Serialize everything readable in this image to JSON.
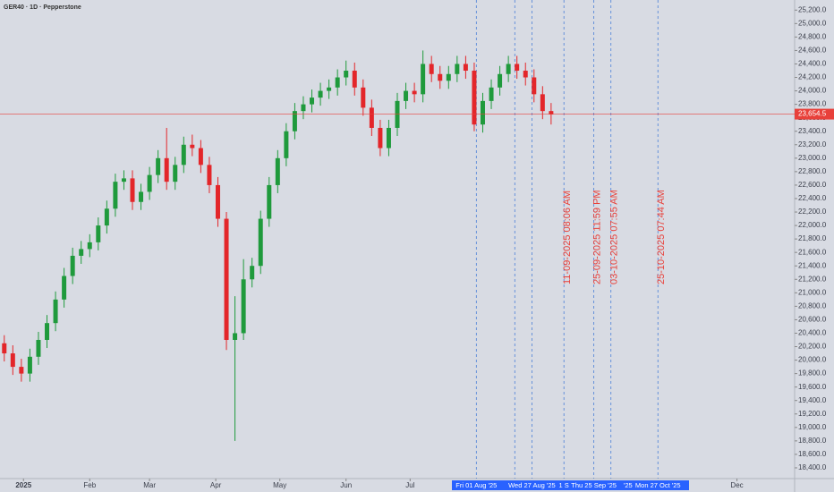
{
  "chart_data": {
    "type": "candlestick",
    "title": "GER40 · 1D · Pepperstone",
    "colors": {
      "up": "#1f9a3c",
      "down": "#e3262a",
      "price_line": "#e8403a",
      "marker_line": "#4a7fd8"
    },
    "x": [
      -8,
      -4,
      0,
      4,
      8,
      12,
      16,
      20,
      24,
      28,
      32,
      36,
      40,
      44,
      48,
      52,
      56,
      60,
      64,
      68,
      72,
      76,
      80,
      84,
      88,
      92,
      96,
      100,
      104,
      108,
      112,
      116,
      120,
      124,
      128,
      132,
      136,
      140,
      144,
      148,
      152,
      156,
      160,
      164,
      168,
      172,
      176,
      180,
      184,
      188,
      192,
      196,
      200,
      204,
      208,
      212,
      216,
      220,
      224,
      228,
      232,
      236,
      240,
      244,
      248
    ],
    "open": [
      20250,
      20100,
      19900,
      19800,
      20050,
      20300,
      20550,
      20900,
      21250,
      21550,
      21650,
      21750,
      22000,
      22250,
      22650,
      22700,
      22350,
      22500,
      22750,
      23000,
      22650,
      22900,
      23200,
      23150,
      22900,
      22600,
      22100,
      20300,
      20400,
      21200,
      21400,
      22100,
      22600,
      23000,
      23400,
      23700,
      23800,
      23900,
      24000,
      24050,
      24200,
      24300,
      24050,
      23750,
      23450,
      23150,
      23450,
      23850,
      24000,
      23950,
      24400,
      24250,
      24150,
      24250,
      24400,
      24300,
      23500,
      23850,
      24050,
      24250,
      24400,
      24300,
      24200,
      23950,
      23700
    ],
    "high": [
      20370,
      20220,
      20020,
      20170,
      20420,
      20670,
      21020,
      21370,
      21670,
      21770,
      21870,
      22120,
      22370,
      22770,
      22820,
      22820,
      22620,
      22870,
      23120,
      23450,
      23020,
      23320,
      23350,
      23270,
      23020,
      22720,
      22200,
      20950,
      21500,
      21520,
      22220,
      22720,
      23120,
      23520,
      23820,
      23920,
      24020,
      24120,
      24170,
      24320,
      24450,
      24420,
      24170,
      23870,
      23570,
      23570,
      23970,
      24120,
      24120,
      24600,
      24520,
      24370,
      24370,
      24520,
      24520,
      24420,
      23970,
      24170,
      24370,
      24520,
      24520,
      24420,
      24320,
      24070,
      23820
    ],
    "low": [
      19980,
      19780,
      19680,
      19680,
      19930,
      20180,
      20430,
      20780,
      21130,
      21430,
      21530,
      21630,
      21880,
      22130,
      22530,
      22230,
      22230,
      22380,
      22630,
      22530,
      22530,
      22780,
      23030,
      22780,
      22480,
      21980,
      20150,
      18800,
      20300,
      21080,
      21280,
      21980,
      22480,
      22880,
      23280,
      23580,
      23680,
      23780,
      23880,
      23930,
      24080,
      23930,
      23630,
      23330,
      23030,
      23030,
      23330,
      23730,
      23830,
      23830,
      24130,
      24030,
      24030,
      24130,
      24180,
      23400,
      23380,
      23730,
      23930,
      24130,
      24180,
      24080,
      23830,
      23580,
      23500
    ],
    "close": [
      20100,
      19900,
      19800,
      20050,
      20300,
      20550,
      20900,
      21250,
      21550,
      21650,
      21750,
      22000,
      22250,
      22650,
      22700,
      22350,
      22500,
      22750,
      23000,
      22650,
      22900,
      23200,
      23150,
      22900,
      22600,
      22100,
      20300,
      20400,
      21200,
      21400,
      22100,
      22600,
      23000,
      23400,
      23700,
      23800,
      23900,
      24000,
      24050,
      24200,
      24300,
      24050,
      23750,
      23450,
      23150,
      23450,
      23850,
      24000,
      23950,
      24400,
      24250,
      24150,
      24250,
      24400,
      24300,
      23500,
      23850,
      24050,
      24250,
      24400,
      24300,
      24200,
      23950,
      23700,
      23650
    ],
    "xlim": [
      -10,
      362
    ],
    "ylim": [
      18240,
      25350
    ],
    "xticks": [
      {
        "value": 1,
        "label": "2025"
      },
      {
        "value": 32,
        "label": "Feb"
      },
      {
        "value": 60,
        "label": "Mar"
      },
      {
        "value": 91,
        "label": "Apr"
      },
      {
        "value": 121,
        "label": "May"
      },
      {
        "value": 152,
        "label": "Jun"
      },
      {
        "value": 182,
        "label": "Jul"
      },
      {
        "value": 335,
        "label": "Dec"
      }
    ],
    "xmarker_labels": [
      {
        "value": 213,
        "label": "Fri 01 Aug '25"
      },
      {
        "value": 239,
        "label": "Wed 27 Aug '25"
      },
      {
        "value": 254,
        "label": "1 S"
      },
      {
        "value": 268,
        "label": "Thu 25 Sep '25"
      },
      {
        "value": 284,
        "label": "'25"
      },
      {
        "value": 298,
        "label": "Mon 27 Oct '25"
      }
    ],
    "marker_lines": [
      213,
      231,
      239,
      254,
      268,
      276,
      298
    ],
    "annotations": [
      {
        "x": 254,
        "text": "11-09-2025 08:06 AM"
      },
      {
        "x": 268,
        "text": "25-09-2025 11:59 PM"
      },
      {
        "x": 276,
        "text": "03-10-2025 07:55 AM"
      },
      {
        "x": 298,
        "text": "25-10-2025 07:44 AM"
      }
    ],
    "price_line": {
      "value": 23654.5,
      "label": "23,654.5"
    },
    "yticks": [
      {
        "value": 25200,
        "label": "25,200.0"
      },
      {
        "value": 25000,
        "label": "25,000.0"
      },
      {
        "value": 24800,
        "label": "24,800.0"
      },
      {
        "value": 24600,
        "label": "24,600.0"
      },
      {
        "value": 24400,
        "label": "24,400.0"
      },
      {
        "value": 24200,
        "label": "24,200.0"
      },
      {
        "value": 24000,
        "label": "24,000.0"
      },
      {
        "value": 23800,
        "label": "23,800.0"
      },
      {
        "value": 23600,
        "label": "23,600.0"
      },
      {
        "value": 23400,
        "label": "23,400.0"
      },
      {
        "value": 23200,
        "label": "23,200.0"
      },
      {
        "value": 23000,
        "label": "23,000.0"
      },
      {
        "value": 22800,
        "label": "22,800.0"
      },
      {
        "value": 22600,
        "label": "22,600.0"
      },
      {
        "value": 22400,
        "label": "22,400.0"
      },
      {
        "value": 22200,
        "label": "22,200.0"
      },
      {
        "value": 22000,
        "label": "22,000.0"
      },
      {
        "value": 21800,
        "label": "21,800.0"
      },
      {
        "value": 21600,
        "label": "21,600.0"
      },
      {
        "value": 21400,
        "label": "21,400.0"
      },
      {
        "value": 21200,
        "label": "21,200.0"
      },
      {
        "value": 21000,
        "label": "21,000.0"
      },
      {
        "value": 20800,
        "label": "20,800.0"
      },
      {
        "value": 20600,
        "label": "20,600.0"
      },
      {
        "value": 20400,
        "label": "20,400.0"
      },
      {
        "value": 20200,
        "label": "20,200.0"
      },
      {
        "value": 20000,
        "label": "20,000.0"
      },
      {
        "value": 19800,
        "label": "19,800.0"
      },
      {
        "value": 19600,
        "label": "19,600.0"
      },
      {
        "value": 19400,
        "label": "19,400.0"
      },
      {
        "value": 19200,
        "label": "19,200.0"
      },
      {
        "value": 19000,
        "label": "19,000.0"
      },
      {
        "value": 18800,
        "label": "18,800.0"
      },
      {
        "value": 18600,
        "label": "18,600.0"
      },
      {
        "value": 18400,
        "label": "18,400.0"
      }
    ]
  }
}
